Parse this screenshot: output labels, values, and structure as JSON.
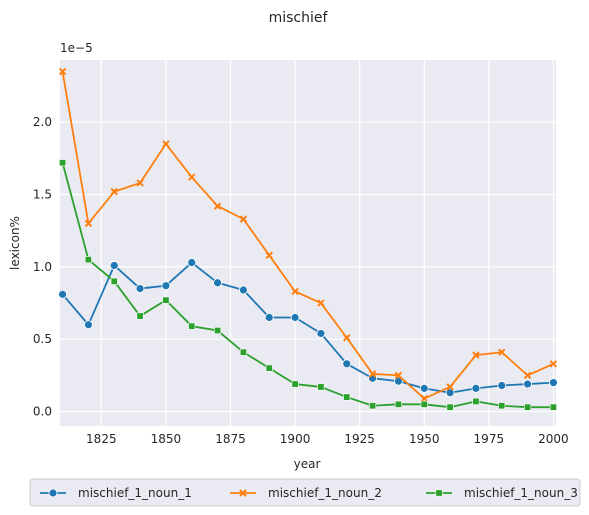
{
  "chart_data": {
    "type": "line",
    "title": "mischief",
    "xlabel": "year",
    "ylabel": "lexicon%",
    "y_multiplier_label": "1e−5",
    "xlim": [
      1809,
      2001
    ],
    "ylim": [
      -0.1,
      2.43
    ],
    "x_ticks": [
      1825,
      1850,
      1875,
      1900,
      1925,
      1950,
      1975,
      2000
    ],
    "y_ticks": [
      0.0,
      0.5,
      1.0,
      1.5,
      2.0
    ],
    "y_tick_labels": [
      "0.0",
      "0.5",
      "1.0",
      "1.5",
      "2.0"
    ],
    "grid": true,
    "legend_position": "bottom",
    "x": [
      1810,
      1820,
      1830,
      1840,
      1850,
      1860,
      1870,
      1880,
      1890,
      1900,
      1910,
      1920,
      1930,
      1940,
      1950,
      1960,
      1970,
      1980,
      1990,
      2000
    ],
    "series": [
      {
        "name": "mischief_1_noun_1",
        "color": "#1f77b4",
        "marker": "circle",
        "values": [
          0.81,
          0.6,
          1.01,
          0.85,
          0.87,
          1.03,
          0.89,
          0.84,
          0.65,
          0.65,
          0.54,
          0.33,
          0.23,
          0.21,
          0.16,
          0.13,
          0.16,
          0.18,
          0.19,
          0.2
        ]
      },
      {
        "name": "mischief_1_noun_2",
        "color": "#ff7f0e",
        "marker": "x",
        "values": [
          2.35,
          1.3,
          1.52,
          1.58,
          1.85,
          1.62,
          1.42,
          1.33,
          1.08,
          0.83,
          0.75,
          0.51,
          0.26,
          0.25,
          0.09,
          0.17,
          0.39,
          0.41,
          0.25,
          0.33
        ]
      },
      {
        "name": "mischief_1_noun_3",
        "color": "#2ca02c",
        "marker": "square",
        "values": [
          1.72,
          1.05,
          0.9,
          0.66,
          0.77,
          0.59,
          0.56,
          0.41,
          0.3,
          0.19,
          0.17,
          0.1,
          0.04,
          0.05,
          0.05,
          0.03,
          0.07,
          0.04,
          0.03,
          0.03
        ]
      }
    ]
  }
}
